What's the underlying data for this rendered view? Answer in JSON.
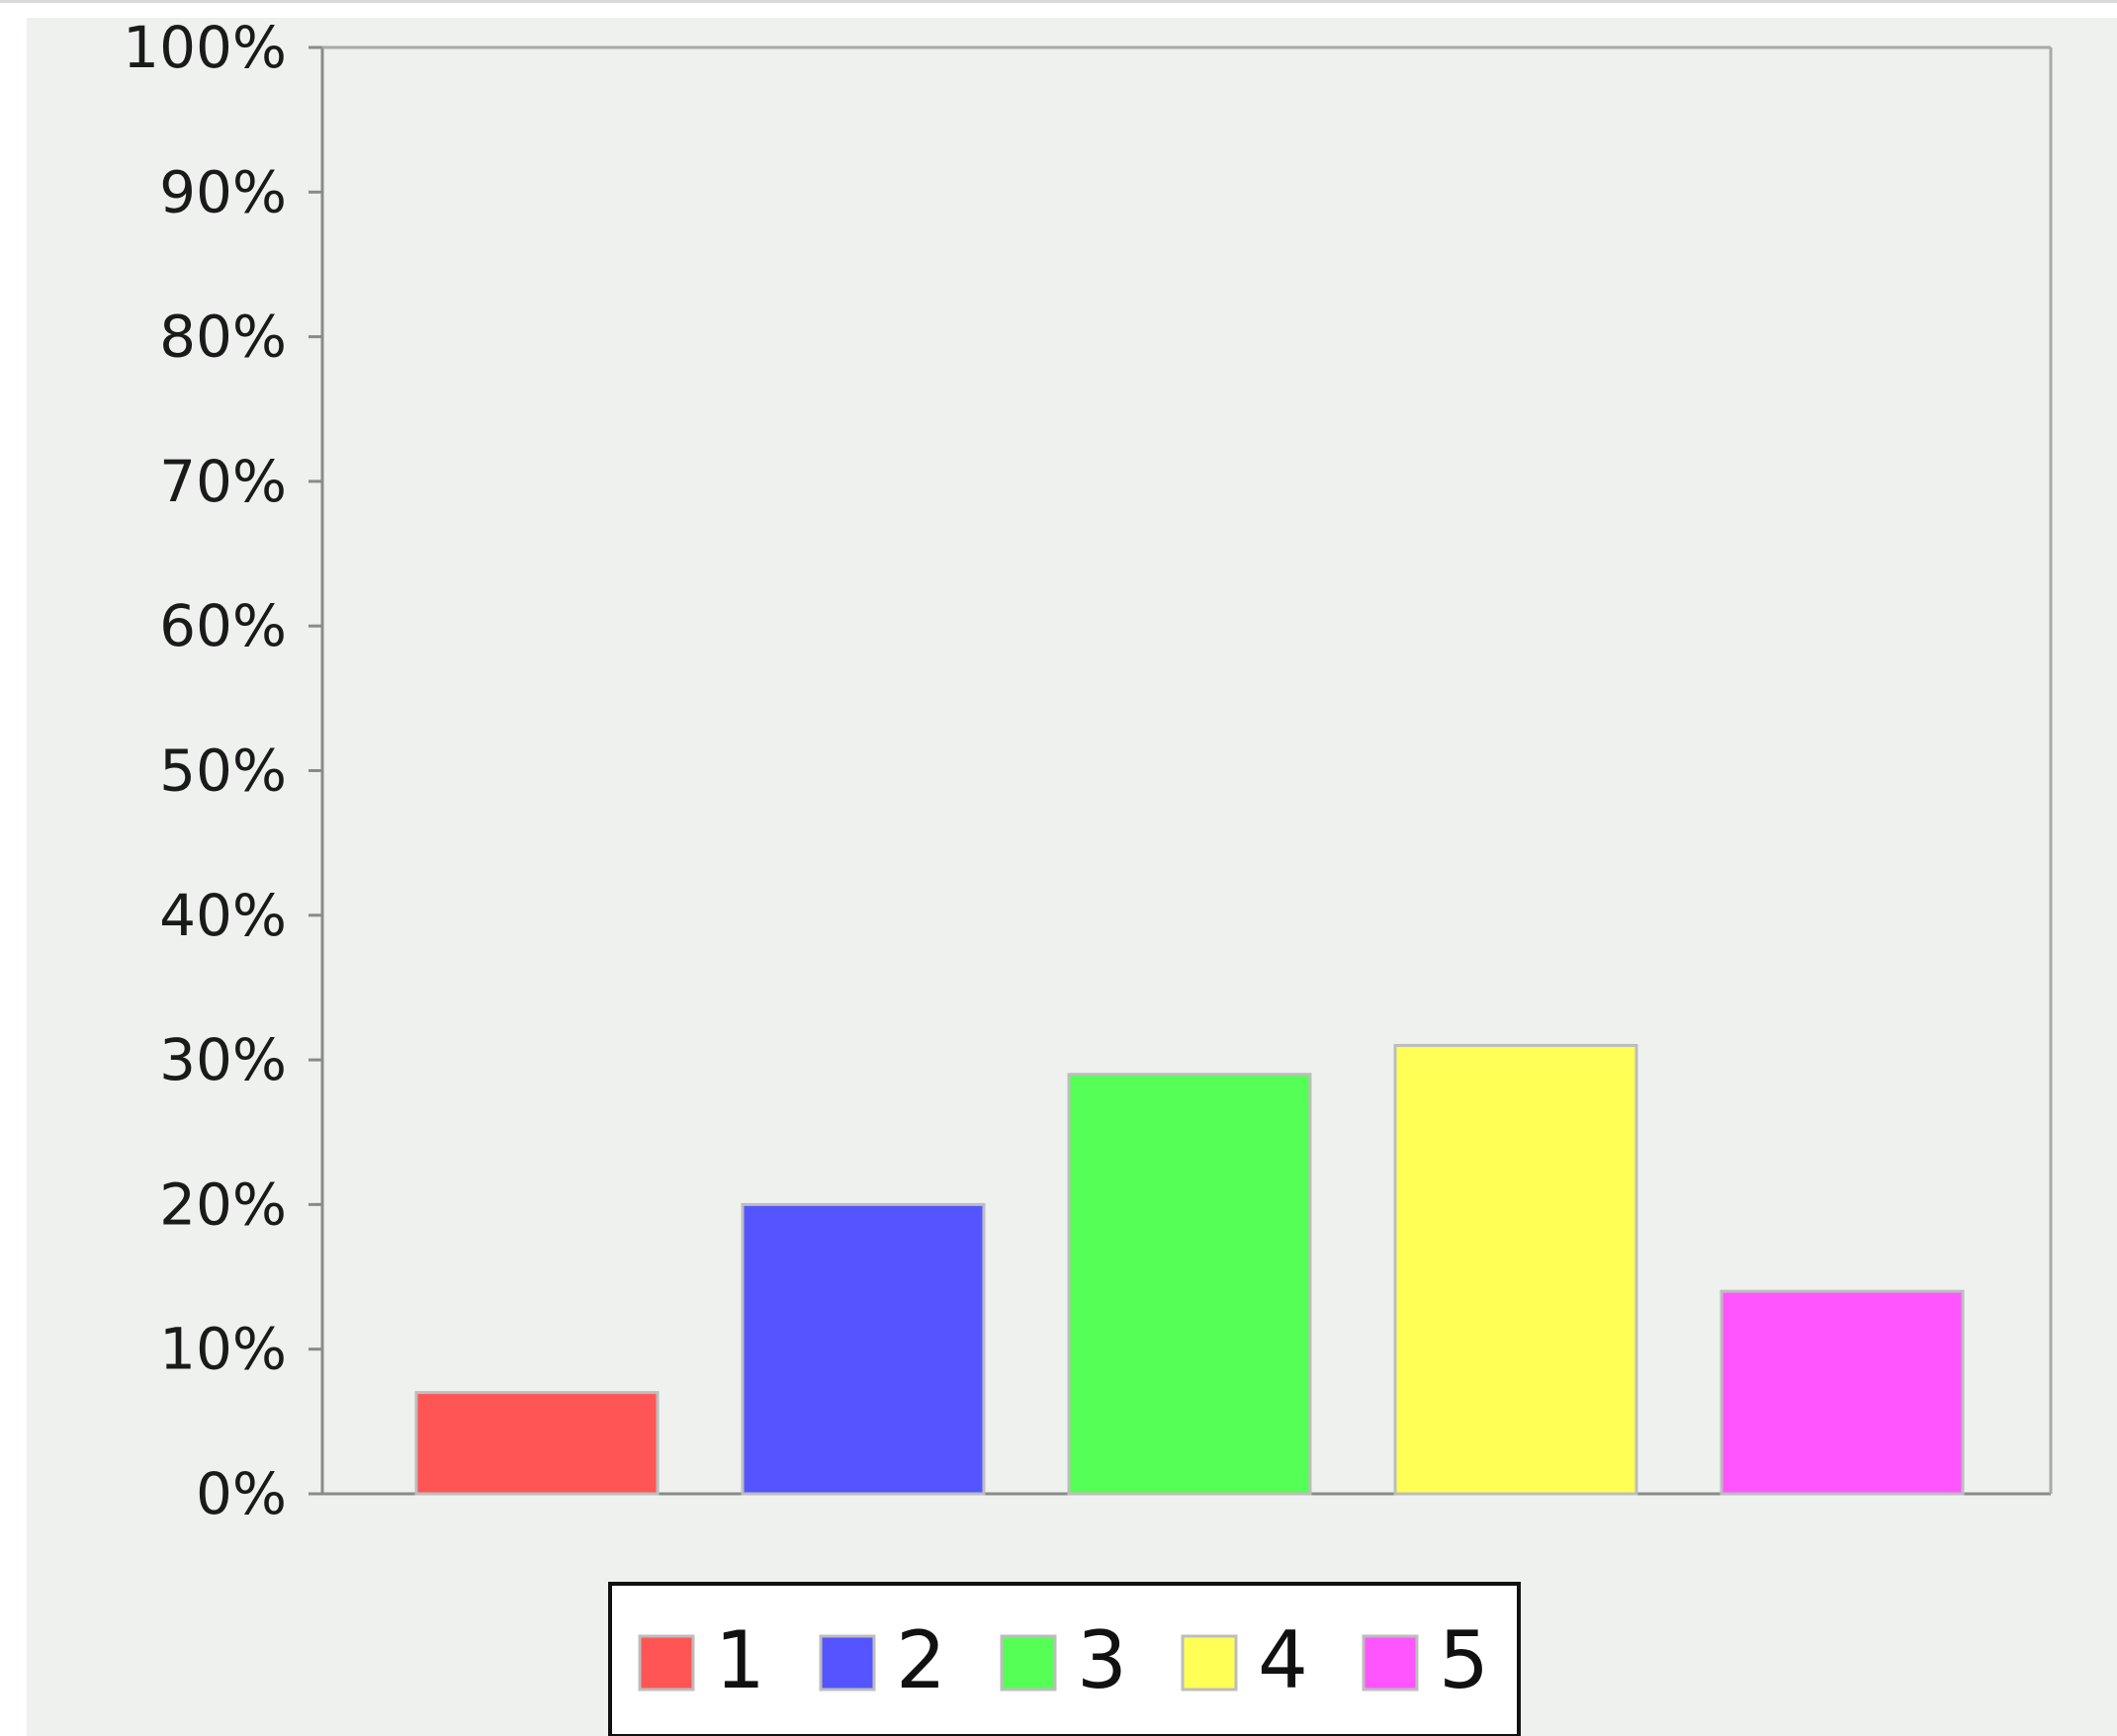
{
  "chart_data": {
    "type": "bar",
    "categories": [
      "1",
      "2",
      "3",
      "4",
      "5"
    ],
    "values": [
      7,
      20,
      29,
      31,
      14
    ],
    "unit": "%",
    "ylim": [
      0,
      100
    ],
    "yticks": [
      "0%",
      "10%",
      "20%",
      "30%",
      "40%",
      "50%",
      "60%",
      "70%",
      "80%",
      "90%",
      "100%"
    ],
    "colors": [
      "#ff5555",
      "#5555ff",
      "#55ff55",
      "#ffff55",
      "#ff55ff"
    ],
    "grid": "horizontal-dashed",
    "legend": {
      "placement": "bottom-center",
      "entries": [
        "1",
        "2",
        "3",
        "4",
        "5"
      ]
    }
  }
}
